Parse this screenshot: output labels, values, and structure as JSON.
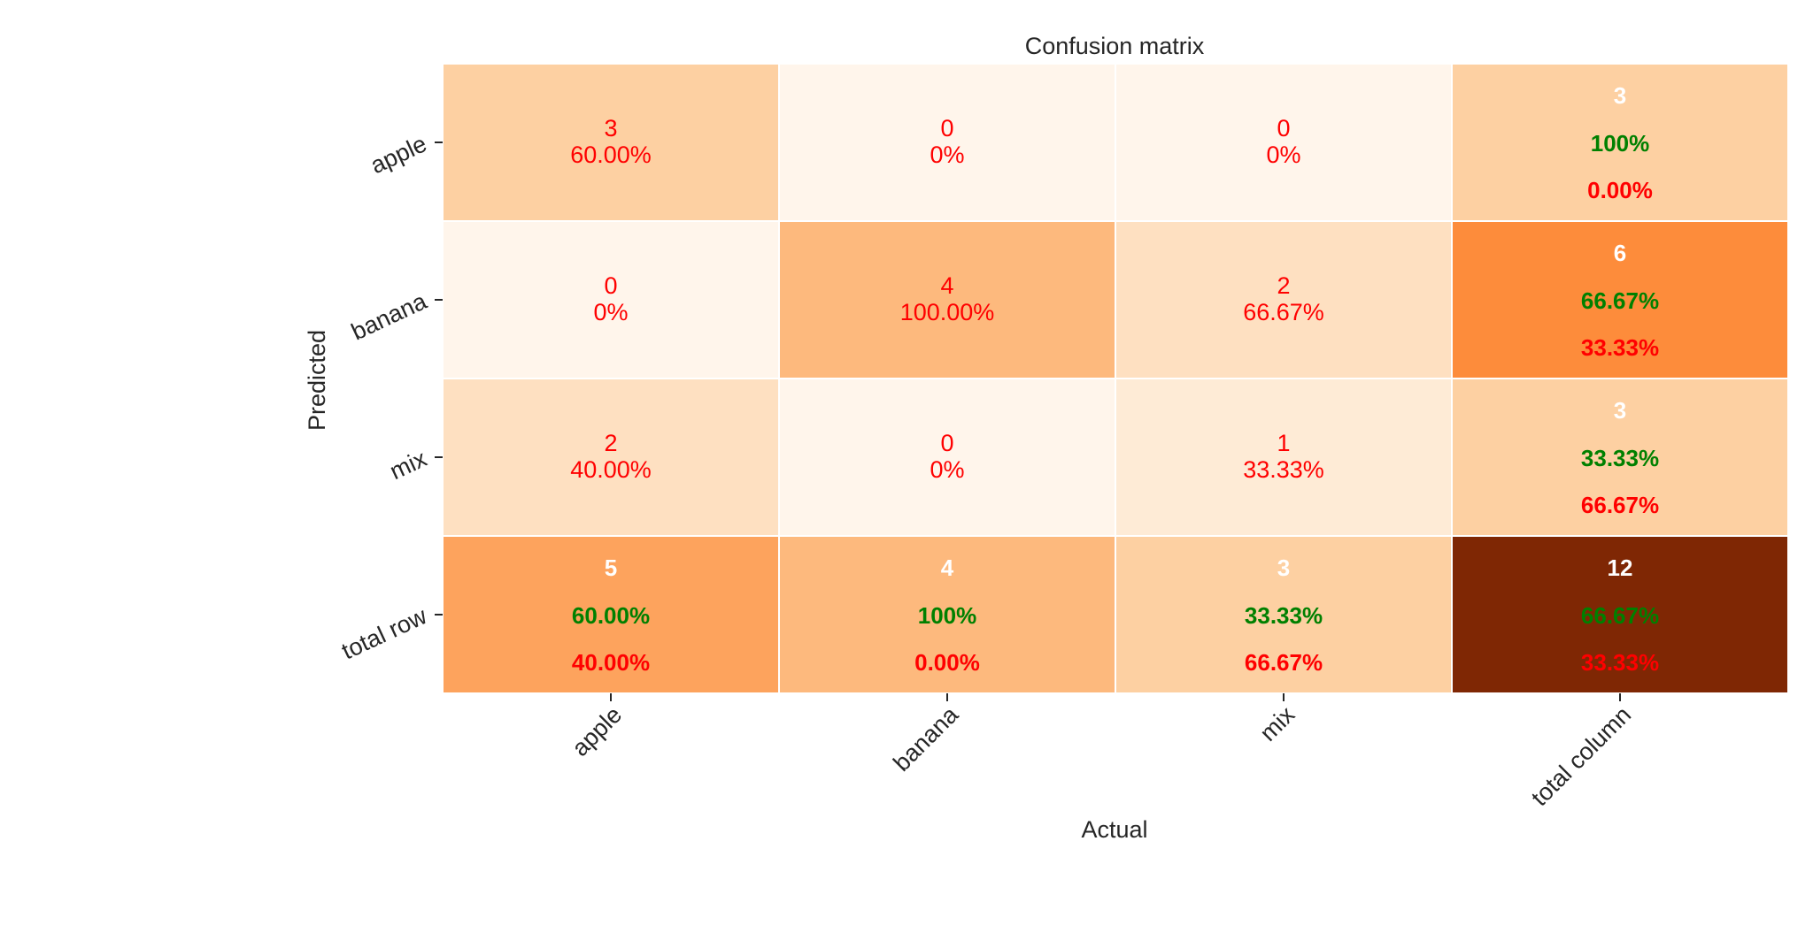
{
  "chart_data": {
    "type": "heatmap",
    "title": "Confusion matrix",
    "xlabel": "Actual",
    "ylabel": "Predicted",
    "x_tick_labels": [
      "apple",
      "banana",
      "mix",
      "total column"
    ],
    "y_tick_labels": [
      "apple",
      "banana",
      "mix",
      "total row"
    ],
    "colormap": "Oranges",
    "colors": {
      "cell_text": "#ff0000",
      "total_count": "#ffffff",
      "correct_pct": "#008000",
      "error_pct": "#ff0000",
      "grid_line": "#ffffff"
    },
    "cells": [
      [
        {
          "count": "3",
          "pct": "60.00%",
          "fill": "#fdd0a2"
        },
        {
          "count": "0",
          "pct": "0%",
          "fill": "#fff5eb"
        },
        {
          "count": "0",
          "pct": "0%",
          "fill": "#fff5eb"
        },
        {
          "count": "3",
          "correct": "100%",
          "error": "0.00%",
          "fill": "#fdd0a2",
          "total": true
        }
      ],
      [
        {
          "count": "0",
          "pct": "0%",
          "fill": "#fff5eb"
        },
        {
          "count": "4",
          "pct": "100.00%",
          "fill": "#fdb97d"
        },
        {
          "count": "2",
          "pct": "66.67%",
          "fill": "#fee0c1"
        },
        {
          "count": "6",
          "correct": "66.67%",
          "error": "33.33%",
          "fill": "#fd8c3b",
          "total": true
        }
      ],
      [
        {
          "count": "2",
          "pct": "40.00%",
          "fill": "#fee0c1"
        },
        {
          "count": "0",
          "pct": "0%",
          "fill": "#fff5eb"
        },
        {
          "count": "1",
          "pct": "33.33%",
          "fill": "#feebd6"
        },
        {
          "count": "3",
          "correct": "33.33%",
          "error": "66.67%",
          "fill": "#fdd0a2",
          "total": true
        }
      ],
      [
        {
          "count": "5",
          "correct": "60.00%",
          "error": "40.00%",
          "fill": "#fda35d",
          "total": true
        },
        {
          "count": "4",
          "correct": "100%",
          "error": "0.00%",
          "fill": "#fdb97d",
          "total": true
        },
        {
          "count": "3",
          "correct": "33.33%",
          "error": "66.67%",
          "fill": "#fdd0a2",
          "total": true
        },
        {
          "count": "12",
          "correct": "66.67%",
          "error": "33.33%",
          "fill": "#7f2704",
          "total": true
        }
      ]
    ]
  }
}
